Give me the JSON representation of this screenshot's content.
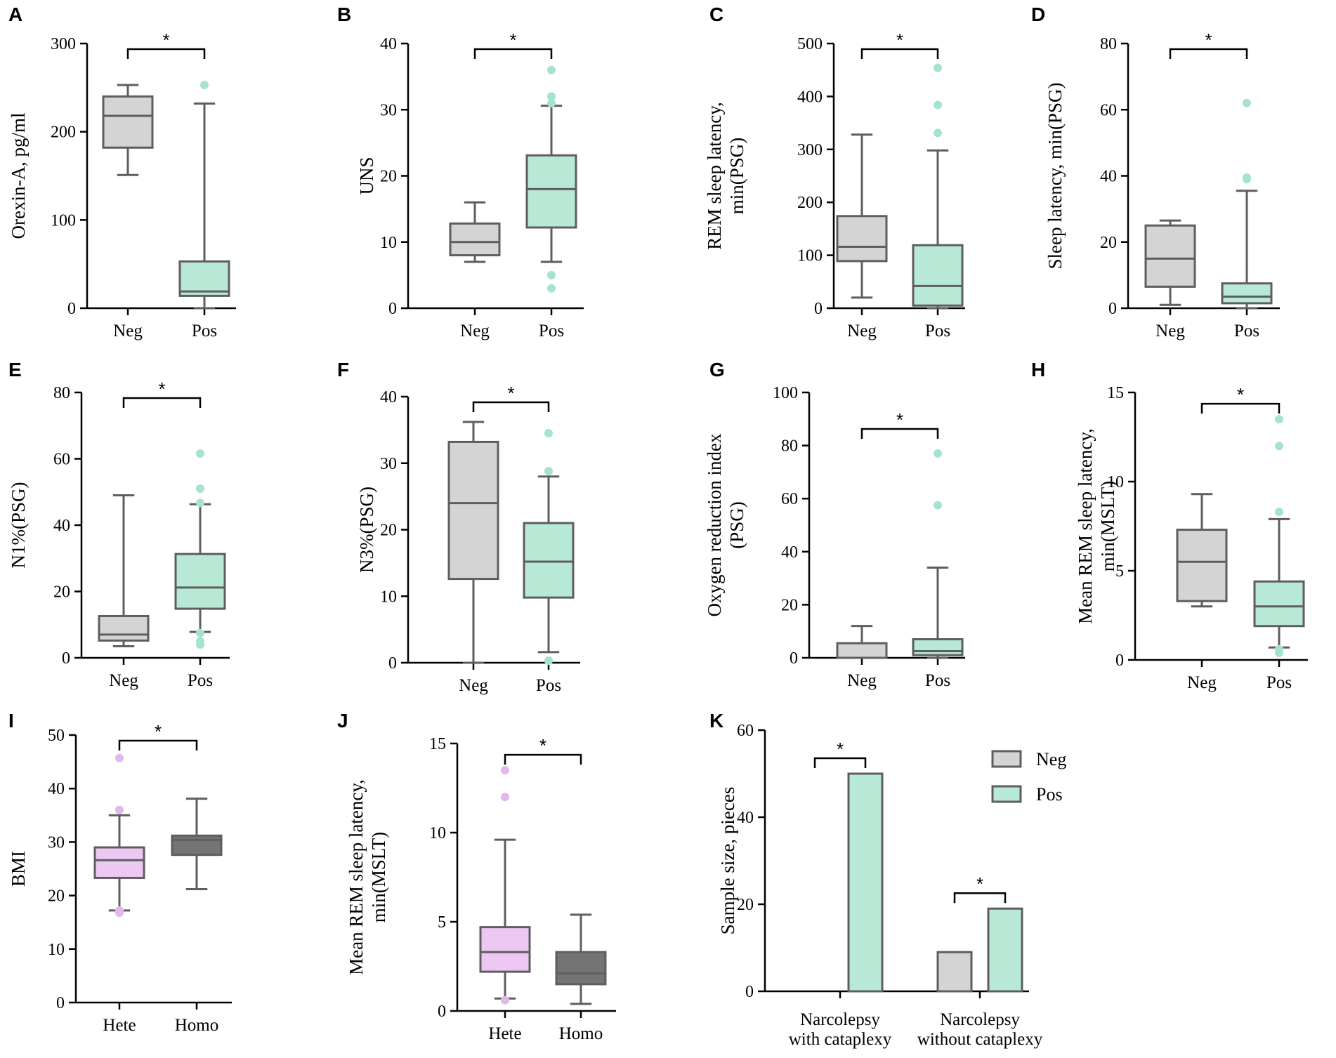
{
  "colors": {
    "neg": "#d4d4d4",
    "pos": "#b8e8d6",
    "pos_dot": "#a6e3cc",
    "hete": "#ecc8f2",
    "hete_dot": "#e2b8ec",
    "homo": "#747474",
    "box_stroke": "#5e5e5e",
    "axis": "#000000"
  },
  "chart_data": [
    {
      "panel": "A",
      "type": "box",
      "ylabel": [
        "Orexin-A, pg/ml"
      ],
      "ylim": [
        0,
        300
      ],
      "yticks": [
        0,
        100,
        200,
        300
      ],
      "categories": [
        "Neg",
        "Pos"
      ],
      "significance": "*",
      "groups": [
        {
          "name": "Neg",
          "color": "neg",
          "min": 151,
          "q1": 182,
          "median": 218,
          "q3": 240,
          "max": 253,
          "outliers": []
        },
        {
          "name": "Pos",
          "color": "pos",
          "min": 0,
          "q1": 14,
          "median": 19,
          "q3": 53,
          "max": 232,
          "outliers": [
            253
          ]
        }
      ]
    },
    {
      "panel": "B",
      "type": "box",
      "ylabel": [
        "UNS"
      ],
      "ylim": [
        0,
        40
      ],
      "yticks": [
        0,
        10,
        20,
        30,
        40
      ],
      "categories": [
        "Neg",
        "Pos"
      ],
      "significance": "*",
      "groups": [
        {
          "name": "Neg",
          "color": "neg",
          "min": 7,
          "q1": 8,
          "median": 10,
          "q3": 12.8,
          "max": 16,
          "outliers": []
        },
        {
          "name": "Pos",
          "color": "pos",
          "min": 7,
          "q1": 12.2,
          "median": 18,
          "q3": 23.1,
          "max": 30.6,
          "outliers": [
            36,
            32,
            31,
            5,
            3
          ]
        }
      ]
    },
    {
      "panel": "C",
      "type": "box",
      "ylabel": [
        "REM sleep latency,",
        "min(PSG)"
      ],
      "ylim": [
        0,
        500
      ],
      "yticks": [
        0,
        100,
        200,
        300,
        400,
        500
      ],
      "categories": [
        "Neg",
        "Pos"
      ],
      "significance": "*",
      "groups": [
        {
          "name": "Neg",
          "color": "neg",
          "min": 20,
          "q1": 89,
          "median": 116,
          "q3": 174,
          "max": 328,
          "outliers": []
        },
        {
          "name": "Pos",
          "color": "pos",
          "min": 0,
          "q1": 5,
          "median": 42,
          "q3": 119,
          "max": 298,
          "outliers": [
            454,
            384,
            331
          ]
        }
      ]
    },
    {
      "panel": "D",
      "type": "box",
      "ylabel": [
        "Sleep latency, min(PSG)"
      ],
      "ylim": [
        0,
        80
      ],
      "yticks": [
        0,
        20,
        40,
        60,
        80
      ],
      "categories": [
        "Neg",
        "Pos"
      ],
      "significance": "*",
      "groups": [
        {
          "name": "Neg",
          "color": "neg",
          "min": 1,
          "q1": 6.5,
          "median": 15,
          "q3": 25,
          "max": 26.5,
          "outliers": []
        },
        {
          "name": "Pos",
          "color": "pos",
          "min": 0,
          "q1": 1.5,
          "median": 3.5,
          "q3": 7.5,
          "max": 35.5,
          "outliers": [
            62,
            39.5,
            39
          ]
        }
      ]
    },
    {
      "panel": "E",
      "type": "box",
      "ylabel": [
        "N1%(PSG)"
      ],
      "ylim": [
        0,
        80
      ],
      "yticks": [
        0,
        20,
        40,
        60,
        80
      ],
      "categories": [
        "Neg",
        "Pos"
      ],
      "significance": "*",
      "groups": [
        {
          "name": "Neg",
          "color": "neg",
          "min": 3.5,
          "q1": 5.2,
          "median": 7,
          "q3": 12.6,
          "max": 49,
          "outliers": []
        },
        {
          "name": "Pos",
          "color": "pos",
          "min": 7.8,
          "q1": 14.8,
          "median": 21.2,
          "q3": 31.3,
          "max": 46.3,
          "outliers": [
            61.6,
            51,
            46.7,
            7.5,
            5,
            4
          ]
        }
      ]
    },
    {
      "panel": "F",
      "type": "box",
      "ylabel": [
        "N3%(PSG)"
      ],
      "ylim": [
        0,
        40
      ],
      "yticks": [
        0,
        10,
        20,
        30,
        40
      ],
      "categories": [
        "Neg",
        "Pos"
      ],
      "significance": "*",
      "groups": [
        {
          "name": "Neg",
          "color": "neg",
          "min": 0,
          "q1": 12.6,
          "median": 24,
          "q3": 33.2,
          "max": 36.2,
          "outliers": []
        },
        {
          "name": "Pos",
          "color": "pos",
          "min": 1.6,
          "q1": 9.8,
          "median": 15.2,
          "q3": 21,
          "max": 28,
          "outliers": [
            34.5,
            28.8,
            0.3,
            0.3
          ]
        }
      ]
    },
    {
      "panel": "G",
      "type": "box",
      "ylabel": [
        "Oxygen reduction index",
        "(PSG)"
      ],
      "ylim": [
        0,
        100
      ],
      "yticks": [
        0,
        20,
        40,
        60,
        80,
        100
      ],
      "categories": [
        "Neg",
        "Pos"
      ],
      "significance": "*",
      "groups": [
        {
          "name": "Neg",
          "color": "neg",
          "min": 0,
          "q1": 0,
          "median": 0,
          "q3": 5.5,
          "max": 12,
          "outliers": []
        },
        {
          "name": "Pos",
          "color": "pos",
          "min": 0,
          "q1": 1,
          "median": 2.5,
          "q3": 7,
          "max": 34,
          "outliers": [
            77,
            57.5
          ]
        }
      ]
    },
    {
      "panel": "H",
      "type": "box",
      "ylabel": [
        "Mean REM sleep latency,",
        "min(MSLT)"
      ],
      "ylim": [
        0,
        15
      ],
      "yticks": [
        0,
        5,
        10,
        15
      ],
      "categories": [
        "Neg",
        "Pos"
      ],
      "significance": "*",
      "groups": [
        {
          "name": "Neg",
          "color": "neg",
          "min": 3,
          "q1": 3.3,
          "median": 5.5,
          "q3": 7.3,
          "max": 9.3,
          "outliers": []
        },
        {
          "name": "Pos",
          "color": "pos",
          "min": 0.7,
          "q1": 1.9,
          "median": 3,
          "q3": 4.4,
          "max": 7.9,
          "outliers": [
            13.5,
            12,
            8.3,
            0.4,
            0.6
          ]
        }
      ]
    },
    {
      "panel": "I",
      "type": "box",
      "ylabel": [
        "BMI"
      ],
      "ylim": [
        0,
        50
      ],
      "yticks": [
        0,
        10,
        20,
        30,
        40,
        50
      ],
      "categories": [
        "Hete",
        "Homo"
      ],
      "significance": "*",
      "groups": [
        {
          "name": "Hete",
          "color": "hete",
          "min": 17.2,
          "q1": 23.3,
          "median": 26.6,
          "q3": 29,
          "max": 35,
          "outliers": [
            45.7,
            36,
            16.8,
            17.2
          ]
        },
        {
          "name": "Homo",
          "color": "homo",
          "min": 21.2,
          "q1": 27.6,
          "median": 30.4,
          "q3": 31.2,
          "max": 38.1,
          "outliers": []
        }
      ]
    },
    {
      "panel": "J",
      "type": "box",
      "ylabel": [
        "Mean REM sleep latency,",
        "min(MSLT)"
      ],
      "ylim": [
        0,
        15
      ],
      "yticks": [
        0,
        5,
        10,
        15
      ],
      "categories": [
        "Hete",
        "Homo"
      ],
      "significance": "*",
      "groups": [
        {
          "name": "Hete",
          "color": "hete",
          "min": 0.7,
          "q1": 2.2,
          "median": 3.3,
          "q3": 4.7,
          "max": 9.6,
          "outliers": [
            13.5,
            12,
            0.6
          ]
        },
        {
          "name": "Homo",
          "color": "homo",
          "min": 0.4,
          "q1": 1.5,
          "median": 2.1,
          "q3": 3.3,
          "max": 5.4,
          "outliers": []
        }
      ]
    },
    {
      "panel": "K",
      "type": "bar",
      "ylabel": [
        "Sample size, pieces"
      ],
      "ylim": [
        0,
        60
      ],
      "yticks": [
        0,
        20,
        40,
        60
      ],
      "categories": [
        [
          "Narcolepsy",
          "with cataplexy"
        ],
        [
          "Narcolepsy",
          "without cataplexy"
        ]
      ],
      "series": [
        {
          "name": "Neg",
          "color": "neg",
          "values": [
            0,
            9
          ]
        },
        {
          "name": "Pos",
          "color": "pos",
          "values": [
            50,
            19
          ]
        }
      ],
      "significance": [
        "*",
        "*"
      ],
      "legend": [
        "Neg",
        "Pos"
      ]
    }
  ]
}
